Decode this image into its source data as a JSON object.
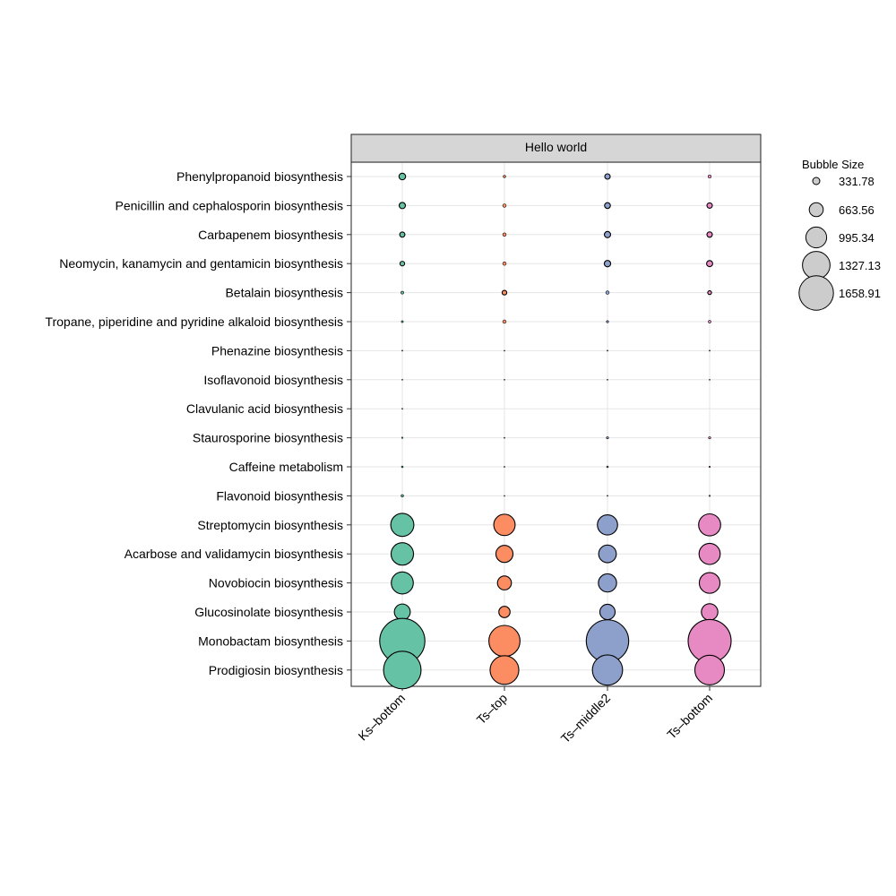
{
  "chart_data": {
    "type": "bubble",
    "title": "Hello world",
    "categories": [
      "Ks–bottom",
      "Ts–top",
      "Ts–middle2",
      "Ts–bottom"
    ],
    "pathways": [
      "Phenylpropanoid biosynthesis",
      "Penicillin and cephalosporin biosynthesis",
      "Carbapenem biosynthesis",
      "Neomycin, kanamycin and gentamicin biosynthesis",
      "Betalain biosynthesis",
      "Tropane, piperidine and pyridine alkaloid biosynthesis",
      "Phenazine biosynthesis",
      "Isoflavonoid biosynthesis",
      "Clavulanic acid biosynthesis",
      "Staurosporine biosynthesis",
      "Caffeine metabolism",
      "Flavonoid biosynthesis",
      "Streptomycin biosynthesis",
      "Acarbose and validamycin biosynthesis",
      "Novobiocin biosynthesis",
      "Glucosinolate biosynthesis",
      "Monobactam biosynthesis",
      "Prodigiosin biosynthesis"
    ],
    "series": [
      {
        "values": [
          45,
          40,
          28,
          22,
          8,
          4,
          1,
          1,
          1,
          2,
          3,
          6,
          550,
          520,
          500,
          260,
          2100,
          1450
        ]
      },
      {
        "values": [
          6,
          12,
          12,
          12,
          22,
          12,
          0.5,
          0.5,
          0,
          1,
          1,
          0.5,
          470,
          300,
          200,
          130,
          1000,
          850
        ]
      },
      {
        "values": [
          30,
          35,
          40,
          42,
          12,
          5,
          1,
          1,
          0,
          5,
          3,
          1,
          420,
          320,
          340,
          240,
          1850,
          940
        ]
      },
      {
        "values": [
          10,
          30,
          30,
          38,
          15,
          7,
          1,
          1,
          0,
          5,
          2,
          2,
          500,
          460,
          440,
          280,
          1900,
          900
        ]
      }
    ],
    "colors": [
      "#66C2A5",
      "#FC8D62",
      "#8DA0CB",
      "#E78AC3"
    ],
    "legend": {
      "title": "Bubble Size",
      "position": "right",
      "values": [
        331.78,
        663.56,
        995.34,
        1327.13,
        1658.91
      ],
      "labels": [
        "331.78",
        "663.56",
        "995.34",
        "1327.13",
        "1658.91"
      ]
    },
    "grid": true
  }
}
